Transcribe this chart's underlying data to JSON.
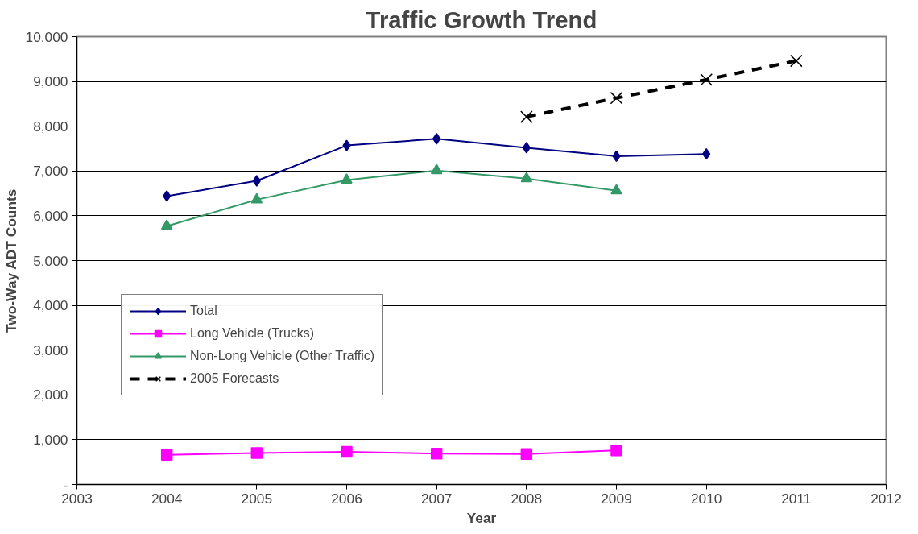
{
  "chart_data": {
    "type": "line",
    "title": "Traffic Growth Trend",
    "xlabel": "Year",
    "ylabel": "Two-Way ADT Counts",
    "xlim": [
      2003,
      2012
    ],
    "xticks": [
      2003,
      2004,
      2005,
      2006,
      2007,
      2008,
      2009,
      2010,
      2011,
      2012
    ],
    "ylim": [
      0,
      10000
    ],
    "yticks": [
      {
        "value": 0,
        "label": "-"
      },
      {
        "value": 1000,
        "label": "1,000"
      },
      {
        "value": 2000,
        "label": "2,000"
      },
      {
        "value": 3000,
        "label": "3,000"
      },
      {
        "value": 4000,
        "label": "4,000"
      },
      {
        "value": 5000,
        "label": "5,000"
      },
      {
        "value": 6000,
        "label": "6,000"
      },
      {
        "value": 7000,
        "label": "7,000"
      },
      {
        "value": 8000,
        "label": "8,000"
      },
      {
        "value": 9000,
        "label": "9,000"
      },
      {
        "value": 10000,
        "label": "10,000"
      }
    ],
    "grid": "y",
    "legend": "bottom left",
    "series": [
      {
        "name": "Total",
        "color": "#000080",
        "marker": "diamond",
        "line_style": "solid",
        "x": [
          2004,
          2005,
          2006,
          2007,
          2008,
          2009,
          2010
        ],
        "values": [
          6440,
          6780,
          7570,
          7720,
          7520,
          7330,
          7380
        ]
      },
      {
        "name": "Long Vehicle (Trucks)",
        "color": "#ff00ff",
        "marker": "square",
        "line_style": "solid",
        "x": [
          2004,
          2005,
          2006,
          2007,
          2008,
          2009
        ],
        "values": [
          660,
          700,
          730,
          690,
          680,
          760
        ]
      },
      {
        "name": "Non-Long Vehicle (Other Traffic)",
        "color": "#339966",
        "marker": "triangle",
        "line_style": "solid",
        "x": [
          2004,
          2005,
          2006,
          2007,
          2008,
          2009
        ],
        "values": [
          5770,
          6360,
          6800,
          7010,
          6830,
          6560
        ]
      },
      {
        "name": "2005 Forecasts",
        "color": "#000000",
        "marker": "cross",
        "line_style": "dashed",
        "x": [
          2008,
          2009,
          2010,
          2011
        ],
        "values": [
          8210,
          8630,
          9040,
          9460
        ]
      }
    ]
  }
}
